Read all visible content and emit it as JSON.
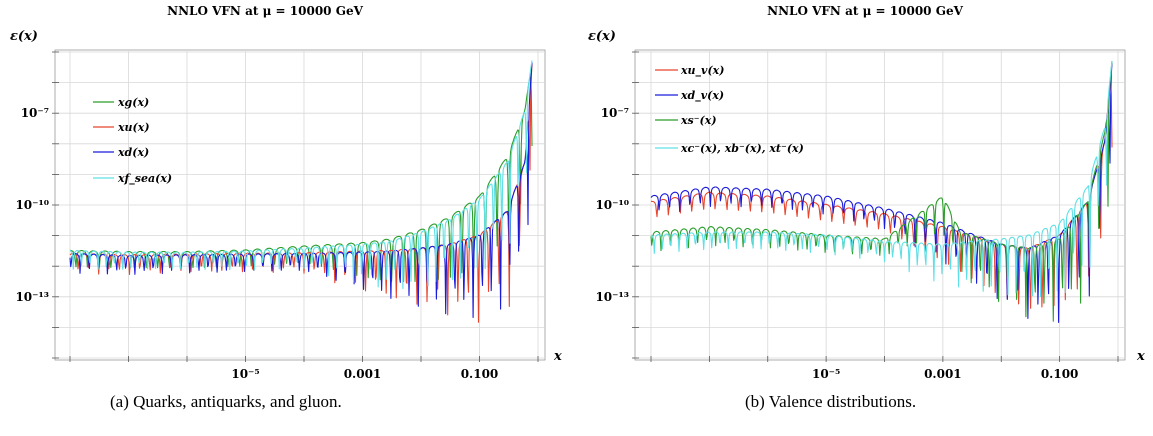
{
  "chart_data": [
    {
      "type": "line",
      "title": "NNLO VFN at μ = 10000 GeV",
      "ylabel": "ε(x)",
      "xlabel": "x",
      "xscale": "log",
      "yscale": "log",
      "xlim": [
        1e-08,
        1
      ],
      "ylim": [
        1e-15,
        1e-05
      ],
      "xticks": [
        "10⁻⁵",
        "0.001",
        "0.100"
      ],
      "yticks": [
        "10⁻⁷",
        "10⁻¹⁰",
        "10⁻¹³"
      ],
      "grid": true,
      "legend_position": "top-left",
      "series": [
        {
          "name": "xg(x)",
          "color": "#2a9d2a",
          "points": [
            [
              1e-08,
              2.5e-12
            ],
            [
              1e-07,
              2.3e-12
            ],
            [
              1e-06,
              2.3e-12
            ],
            [
              1e-05,
              2.6e-12
            ],
            [
              0.0001,
              3.5e-12
            ],
            [
              0.001,
              4.5e-12
            ],
            [
              0.003,
              6e-12
            ],
            [
              0.01,
              1.2e-11
            ],
            [
              0.03,
              3e-11
            ],
            [
              0.1,
              1.5e-10
            ],
            [
              0.3,
              3e-09
            ],
            [
              0.6,
              1e-07
            ],
            [
              0.8,
              5e-06
            ]
          ]
        },
        {
          "name": "xu(x)",
          "color": "#e8452c",
          "points": [
            [
              1e-08,
              2e-12
            ],
            [
              1e-07,
              1.8e-12
            ],
            [
              1e-06,
              1.9e-12
            ],
            [
              1e-05,
              2e-12
            ],
            [
              0.0001,
              2.1e-12
            ],
            [
              0.001,
              2.4e-12
            ],
            [
              0.003,
              2.5e-12
            ],
            [
              0.01,
              3e-12
            ],
            [
              0.03,
              4e-12
            ],
            [
              0.1,
              8e-12
            ],
            [
              0.3,
              5e-11
            ],
            [
              0.6,
              2e-09
            ],
            [
              0.8,
              5e-06
            ]
          ]
        },
        {
          "name": "xd(x)",
          "color": "#1a1adb",
          "points": [
            [
              1e-08,
              2e-12
            ],
            [
              1e-07,
              1.7e-12
            ],
            [
              1e-06,
              1.8e-12
            ],
            [
              1e-05,
              1.9e-12
            ],
            [
              0.0001,
              2e-12
            ],
            [
              0.001,
              2.2e-12
            ],
            [
              0.003,
              2.4e-12
            ],
            [
              0.01,
              3e-12
            ],
            [
              0.03,
              4e-12
            ],
            [
              0.1,
              8e-12
            ],
            [
              0.3,
              5e-11
            ],
            [
              0.6,
              2e-09
            ],
            [
              0.8,
              5e-06
            ]
          ]
        },
        {
          "name": "xf_sea(x)",
          "color": "#5fe0e6",
          "points": [
            [
              1e-08,
              2.5e-12
            ],
            [
              1e-07,
              2.2e-12
            ],
            [
              1e-06,
              2.2e-12
            ],
            [
              1e-05,
              2.4e-12
            ],
            [
              0.0001,
              3e-12
            ],
            [
              0.001,
              4e-12
            ],
            [
              0.003,
              5e-12
            ],
            [
              0.01,
              1e-11
            ],
            [
              0.03,
              2.5e-11
            ],
            [
              0.1,
              1.2e-10
            ],
            [
              0.3,
              2e-09
            ],
            [
              0.6,
              1e-07
            ],
            [
              0.8,
              5e-06
            ]
          ]
        }
      ]
    },
    {
      "type": "line",
      "title": "NNLO VFN at μ = 10000 GeV",
      "ylabel": "ε(x)",
      "xlabel": "x",
      "xscale": "log",
      "yscale": "log",
      "xlim": [
        1e-08,
        1
      ],
      "ylim": [
        1e-15,
        1e-05
      ],
      "xticks": [
        "10⁻⁵",
        "0.001",
        "0.100"
      ],
      "yticks": [
        "10⁻⁷",
        "10⁻¹⁰",
        "10⁻¹³"
      ],
      "grid": true,
      "legend_position": "top-left",
      "series": [
        {
          "name": "xu_v(x)",
          "color": "#e8452c",
          "points": [
            [
              1e-08,
              1e-10
            ],
            [
              1e-07,
              2e-10
            ],
            [
              1e-06,
              1.5e-10
            ],
            [
              1e-05,
              8e-11
            ],
            [
              0.0001,
              4e-11
            ],
            [
              0.001,
              1.5e-11
            ],
            [
              0.003,
              8e-12
            ],
            [
              0.01,
              4e-12
            ],
            [
              0.03,
              3e-12
            ],
            [
              0.1,
              8e-12
            ],
            [
              0.3,
              1e-10
            ],
            [
              0.6,
              1e-08
            ],
            [
              0.8,
              5e-06
            ]
          ]
        },
        {
          "name": "xd_v(x)",
          "color": "#1a1adb",
          "points": [
            [
              1e-08,
              1.5e-10
            ],
            [
              1e-07,
              3e-10
            ],
            [
              1e-06,
              2.5e-10
            ],
            [
              1e-05,
              1.5e-10
            ],
            [
              0.0001,
              6e-11
            ],
            [
              0.001,
              2e-11
            ],
            [
              0.003,
              9e-12
            ],
            [
              0.01,
              4e-12
            ],
            [
              0.03,
              3e-12
            ],
            [
              0.1,
              8e-12
            ],
            [
              0.3,
              1e-10
            ],
            [
              0.6,
              1e-08
            ],
            [
              0.8,
              5e-06
            ]
          ]
        },
        {
          "name": "xs⁻(x)",
          "color": "#2a9d2a",
          "points": [
            [
              1e-08,
              1e-11
            ],
            [
              1e-07,
              1.5e-11
            ],
            [
              1e-06,
              1.2e-11
            ],
            [
              1e-05,
              8e-12
            ],
            [
              0.0001,
              6e-12
            ],
            [
              0.001,
              1.5e-10
            ],
            [
              0.002,
              1e-11
            ],
            [
              0.01,
              4e-12
            ],
            [
              0.03,
              3e-12
            ],
            [
              0.1,
              6e-12
            ],
            [
              0.3,
              1e-10
            ],
            [
              0.6,
              2e-08
            ],
            [
              0.8,
              5e-06
            ]
          ]
        },
        {
          "name": "xc⁻(x), xb⁻(x), xt⁻(x)",
          "color": "#5fe0e6",
          "points": [
            [
              1e-08,
              8e-12
            ],
            [
              1e-07,
              1e-11
            ],
            [
              1e-06,
              1e-11
            ],
            [
              1e-05,
              8e-12
            ],
            [
              0.0001,
              5e-12
            ],
            [
              0.001,
              4e-12
            ],
            [
              0.003,
              5e-12
            ],
            [
              0.01,
              6e-12
            ],
            [
              0.03,
              8e-12
            ],
            [
              0.1,
              2e-11
            ],
            [
              0.3,
              3e-10
            ],
            [
              0.6,
              3e-08
            ],
            [
              0.8,
              5e-06
            ]
          ]
        }
      ]
    }
  ],
  "captions": [
    "(a) Quarks, antiquarks, and gluon.",
    "(b) Valence distributions."
  ]
}
